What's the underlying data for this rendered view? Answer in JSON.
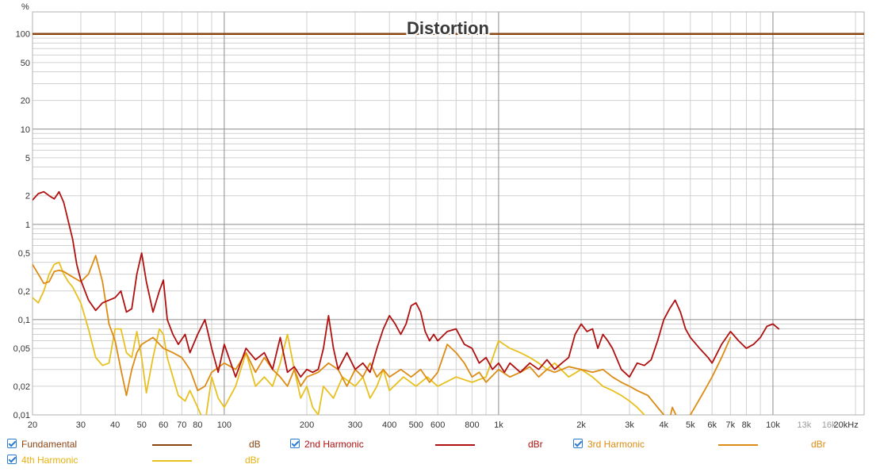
{
  "chart_data": {
    "type": "line",
    "title": "Distortion",
    "ylabel": "%",
    "xunit": "Hz",
    "xscale": "log",
    "yscale": "log",
    "xlim": [
      20,
      21500
    ],
    "ylim": [
      0.01,
      170
    ],
    "grid": true,
    "x_ticks": [
      {
        "v": 20,
        "l": "20"
      },
      {
        "v": 30,
        "l": "30"
      },
      {
        "v": 40,
        "l": "40"
      },
      {
        "v": 50,
        "l": "50"
      },
      {
        "v": 60,
        "l": "60"
      },
      {
        "v": 70,
        "l": "70"
      },
      {
        "v": 80,
        "l": "80"
      },
      {
        "v": 100,
        "l": "100"
      },
      {
        "v": 200,
        "l": "200"
      },
      {
        "v": 300,
        "l": "300"
      },
      {
        "v": 400,
        "l": "400"
      },
      {
        "v": 500,
        "l": "500"
      },
      {
        "v": 600,
        "l": "600"
      },
      {
        "v": 800,
        "l": "800"
      },
      {
        "v": 1000,
        "l": "1k"
      },
      {
        "v": 2000,
        "l": "2k"
      },
      {
        "v": 3000,
        "l": "3k"
      },
      {
        "v": 4000,
        "l": "4k"
      },
      {
        "v": 5000,
        "l": "5k"
      },
      {
        "v": 6000,
        "l": "6k"
      },
      {
        "v": 7000,
        "l": "7k"
      },
      {
        "v": 8000,
        "l": "8k"
      },
      {
        "v": 10000,
        "l": "10k"
      },
      {
        "v": 13000,
        "l": "13k"
      },
      {
        "v": 16000,
        "l": "16k"
      },
      {
        "v": 20000,
        "l": "20kHz"
      }
    ],
    "y_ticks": [
      {
        "v": 100,
        "l": "100"
      },
      {
        "v": 50,
        "l": "50"
      },
      {
        "v": 20,
        "l": "20"
      },
      {
        "v": 10,
        "l": "10"
      },
      {
        "v": 5,
        "l": "5"
      },
      {
        "v": 2,
        "l": "2"
      },
      {
        "v": 1,
        "l": "1"
      },
      {
        "v": 0.5,
        "l": "0,5"
      },
      {
        "v": 0.2,
        "l": "0,2"
      },
      {
        "v": 0.1,
        "l": "0,1"
      },
      {
        "v": 0.05,
        "l": "0,05"
      },
      {
        "v": 0.02,
        "l": "0,02"
      },
      {
        "v": 0.01,
        "l": "0,01"
      }
    ],
    "series": [
      {
        "name": "Fundamental",
        "unit": "dB",
        "color": "#8b4513",
        "points": [
          [
            20,
            100
          ],
          [
            21500,
            100
          ]
        ]
      },
      {
        "name": "2nd Harmonic",
        "unit": "dBr",
        "color": "#b01010",
        "points": [
          [
            20,
            1.8
          ],
          [
            21,
            2.1
          ],
          [
            22,
            2.2
          ],
          [
            23,
            2.0
          ],
          [
            24,
            1.85
          ],
          [
            25,
            2.2
          ],
          [
            26,
            1.7
          ],
          [
            28,
            0.7
          ],
          [
            29,
            0.38
          ],
          [
            30,
            0.26
          ],
          [
            32,
            0.16
          ],
          [
            34,
            0.125
          ],
          [
            36,
            0.15
          ],
          [
            40,
            0.17
          ],
          [
            42,
            0.2
          ],
          [
            44,
            0.12
          ],
          [
            46,
            0.13
          ],
          [
            48,
            0.3
          ],
          [
            50,
            0.5
          ],
          [
            52,
            0.25
          ],
          [
            55,
            0.12
          ],
          [
            58,
            0.2
          ],
          [
            60,
            0.26
          ],
          [
            62,
            0.1
          ],
          [
            65,
            0.07
          ],
          [
            68,
            0.055
          ],
          [
            72,
            0.07
          ],
          [
            75,
            0.045
          ],
          [
            80,
            0.07
          ],
          [
            85,
            0.1
          ],
          [
            90,
            0.05
          ],
          [
            95,
            0.028
          ],
          [
            100,
            0.055
          ],
          [
            110,
            0.025
          ],
          [
            120,
            0.05
          ],
          [
            130,
            0.038
          ],
          [
            140,
            0.045
          ],
          [
            150,
            0.03
          ],
          [
            160,
            0.065
          ],
          [
            170,
            0.028
          ],
          [
            180,
            0.032
          ],
          [
            190,
            0.025
          ],
          [
            200,
            0.03
          ],
          [
            210,
            0.028
          ],
          [
            220,
            0.03
          ],
          [
            230,
            0.05
          ],
          [
            240,
            0.11
          ],
          [
            250,
            0.05
          ],
          [
            260,
            0.03
          ],
          [
            280,
            0.045
          ],
          [
            300,
            0.03
          ],
          [
            320,
            0.035
          ],
          [
            340,
            0.028
          ],
          [
            360,
            0.05
          ],
          [
            380,
            0.08
          ],
          [
            400,
            0.11
          ],
          [
            420,
            0.09
          ],
          [
            440,
            0.07
          ],
          [
            460,
            0.09
          ],
          [
            480,
            0.14
          ],
          [
            500,
            0.15
          ],
          [
            520,
            0.12
          ],
          [
            540,
            0.075
          ],
          [
            560,
            0.06
          ],
          [
            580,
            0.07
          ],
          [
            600,
            0.06
          ],
          [
            650,
            0.075
          ],
          [
            700,
            0.08
          ],
          [
            750,
            0.055
          ],
          [
            800,
            0.05
          ],
          [
            850,
            0.035
          ],
          [
            900,
            0.04
          ],
          [
            950,
            0.03
          ],
          [
            1000,
            0.035
          ],
          [
            1050,
            0.028
          ],
          [
            1100,
            0.035
          ],
          [
            1200,
            0.028
          ],
          [
            1300,
            0.035
          ],
          [
            1400,
            0.03
          ],
          [
            1500,
            0.038
          ],
          [
            1600,
            0.03
          ],
          [
            1700,
            0.035
          ],
          [
            1800,
            0.04
          ],
          [
            1900,
            0.07
          ],
          [
            2000,
            0.09
          ],
          [
            2100,
            0.075
          ],
          [
            2200,
            0.08
          ],
          [
            2300,
            0.05
          ],
          [
            2400,
            0.07
          ],
          [
            2500,
            0.06
          ],
          [
            2600,
            0.05
          ],
          [
            2800,
            0.03
          ],
          [
            3000,
            0.025
          ],
          [
            3200,
            0.035
          ],
          [
            3400,
            0.033
          ],
          [
            3600,
            0.038
          ],
          [
            3800,
            0.06
          ],
          [
            4000,
            0.1
          ],
          [
            4200,
            0.13
          ],
          [
            4400,
            0.16
          ],
          [
            4600,
            0.12
          ],
          [
            4800,
            0.08
          ],
          [
            5000,
            0.065
          ],
          [
            5400,
            0.05
          ],
          [
            5800,
            0.04
          ],
          [
            6000,
            0.035
          ],
          [
            6500,
            0.055
          ],
          [
            7000,
            0.075
          ],
          [
            7500,
            0.06
          ],
          [
            8000,
            0.05
          ],
          [
            8500,
            0.055
          ],
          [
            9000,
            0.065
          ],
          [
            9500,
            0.085
          ],
          [
            10000,
            0.09
          ],
          [
            10500,
            0.08
          ]
        ]
      },
      {
        "name": "3rd Harmonic",
        "unit": "dBr",
        "color": "#dc8c14",
        "points": [
          [
            20,
            0.38
          ],
          [
            21,
            0.3
          ],
          [
            22,
            0.24
          ],
          [
            23,
            0.25
          ],
          [
            24,
            0.32
          ],
          [
            25,
            0.33
          ],
          [
            26,
            0.32
          ],
          [
            28,
            0.28
          ],
          [
            30,
            0.25
          ],
          [
            32,
            0.3
          ],
          [
            34,
            0.47
          ],
          [
            36,
            0.25
          ],
          [
            38,
            0.09
          ],
          [
            40,
            0.06
          ],
          [
            42,
            0.03
          ],
          [
            44,
            0.016
          ],
          [
            46,
            0.03
          ],
          [
            48,
            0.045
          ],
          [
            50,
            0.055
          ],
          [
            55,
            0.065
          ],
          [
            60,
            0.05
          ],
          [
            65,
            0.045
          ],
          [
            70,
            0.04
          ],
          [
            75,
            0.03
          ],
          [
            80,
            0.018
          ],
          [
            85,
            0.02
          ],
          [
            90,
            0.028
          ],
          [
            100,
            0.035
          ],
          [
            110,
            0.03
          ],
          [
            120,
            0.045
          ],
          [
            130,
            0.028
          ],
          [
            140,
            0.04
          ],
          [
            150,
            0.03
          ],
          [
            160,
            0.025
          ],
          [
            170,
            0.02
          ],
          [
            180,
            0.03
          ],
          [
            190,
            0.02
          ],
          [
            200,
            0.025
          ],
          [
            220,
            0.028
          ],
          [
            240,
            0.035
          ],
          [
            260,
            0.03
          ],
          [
            280,
            0.02
          ],
          [
            300,
            0.03
          ],
          [
            320,
            0.025
          ],
          [
            340,
            0.035
          ],
          [
            360,
            0.025
          ],
          [
            380,
            0.03
          ],
          [
            400,
            0.025
          ],
          [
            440,
            0.03
          ],
          [
            480,
            0.025
          ],
          [
            520,
            0.03
          ],
          [
            560,
            0.022
          ],
          [
            600,
            0.028
          ],
          [
            650,
            0.055
          ],
          [
            700,
            0.045
          ],
          [
            750,
            0.035
          ],
          [
            800,
            0.025
          ],
          [
            850,
            0.028
          ],
          [
            900,
            0.022
          ],
          [
            1000,
            0.03
          ],
          [
            1100,
            0.025
          ],
          [
            1200,
            0.028
          ],
          [
            1300,
            0.032
          ],
          [
            1400,
            0.025
          ],
          [
            1500,
            0.03
          ],
          [
            1600,
            0.028
          ],
          [
            1800,
            0.032
          ],
          [
            2000,
            0.03
          ],
          [
            2200,
            0.028
          ],
          [
            2400,
            0.03
          ],
          [
            2600,
            0.025
          ],
          [
            2800,
            0.022
          ],
          [
            3000,
            0.02
          ],
          [
            3200,
            0.018
          ],
          [
            3500,
            0.016
          ],
          [
            3800,
            0.012
          ],
          [
            4000,
            0.01
          ],
          [
            4200,
            0.009
          ],
          [
            4300,
            0.012
          ],
          [
            4500,
            0.009
          ],
          [
            5000,
            0.01
          ],
          [
            5500,
            0.016
          ],
          [
            6000,
            0.025
          ],
          [
            6500,
            0.04
          ],
          [
            7000,
            0.065
          ]
        ]
      },
      {
        "name": "4th Harmonic",
        "unit": "dBr",
        "color": "#e8c020",
        "points": [
          [
            20,
            0.17
          ],
          [
            21,
            0.15
          ],
          [
            22,
            0.2
          ],
          [
            23,
            0.3
          ],
          [
            24,
            0.38
          ],
          [
            25,
            0.4
          ],
          [
            26,
            0.3
          ],
          [
            27,
            0.25
          ],
          [
            28,
            0.22
          ],
          [
            30,
            0.15
          ],
          [
            32,
            0.08
          ],
          [
            34,
            0.04
          ],
          [
            36,
            0.033
          ],
          [
            38,
            0.035
          ],
          [
            40,
            0.08
          ],
          [
            42,
            0.08
          ],
          [
            44,
            0.045
          ],
          [
            46,
            0.04
          ],
          [
            48,
            0.075
          ],
          [
            50,
            0.04
          ],
          [
            52,
            0.017
          ],
          [
            55,
            0.04
          ],
          [
            58,
            0.08
          ],
          [
            60,
            0.07
          ],
          [
            62,
            0.04
          ],
          [
            65,
            0.025
          ],
          [
            68,
            0.016
          ],
          [
            72,
            0.014
          ],
          [
            75,
            0.018
          ],
          [
            80,
            0.012
          ],
          [
            85,
            0.008
          ],
          [
            90,
            0.025
          ],
          [
            95,
            0.015
          ],
          [
            100,
            0.012
          ],
          [
            110,
            0.02
          ],
          [
            120,
            0.045
          ],
          [
            130,
            0.02
          ],
          [
            140,
            0.025
          ],
          [
            150,
            0.02
          ],
          [
            160,
            0.035
          ],
          [
            170,
            0.07
          ],
          [
            180,
            0.03
          ],
          [
            190,
            0.015
          ],
          [
            200,
            0.02
          ],
          [
            210,
            0.012
          ],
          [
            220,
            0.01
          ],
          [
            230,
            0.02
          ],
          [
            250,
            0.015
          ],
          [
            270,
            0.025
          ],
          [
            300,
            0.02
          ],
          [
            320,
            0.025
          ],
          [
            340,
            0.015
          ],
          [
            360,
            0.02
          ],
          [
            380,
            0.03
          ],
          [
            400,
            0.018
          ],
          [
            450,
            0.025
          ],
          [
            500,
            0.02
          ],
          [
            550,
            0.025
          ],
          [
            600,
            0.02
          ],
          [
            700,
            0.025
          ],
          [
            800,
            0.022
          ],
          [
            900,
            0.025
          ],
          [
            1000,
            0.06
          ],
          [
            1100,
            0.05
          ],
          [
            1200,
            0.045
          ],
          [
            1300,
            0.04
          ],
          [
            1400,
            0.035
          ],
          [
            1500,
            0.03
          ],
          [
            1600,
            0.035
          ],
          [
            1800,
            0.025
          ],
          [
            2000,
            0.03
          ],
          [
            2200,
            0.025
          ],
          [
            2400,
            0.02
          ],
          [
            2600,
            0.018
          ],
          [
            2800,
            0.016
          ],
          [
            3000,
            0.014
          ],
          [
            3200,
            0.012
          ],
          [
            3400,
            0.01
          ],
          [
            3600,
            0.008
          ]
        ]
      }
    ]
  },
  "legend": [
    {
      "name": "Fundamental",
      "unit": "dB"
    },
    {
      "name": "2nd Harmonic",
      "unit": "dBr"
    },
    {
      "name": "3rd Harmonic",
      "unit": "dBr"
    },
    {
      "name": "4th Harmonic",
      "unit": "dBr"
    }
  ]
}
